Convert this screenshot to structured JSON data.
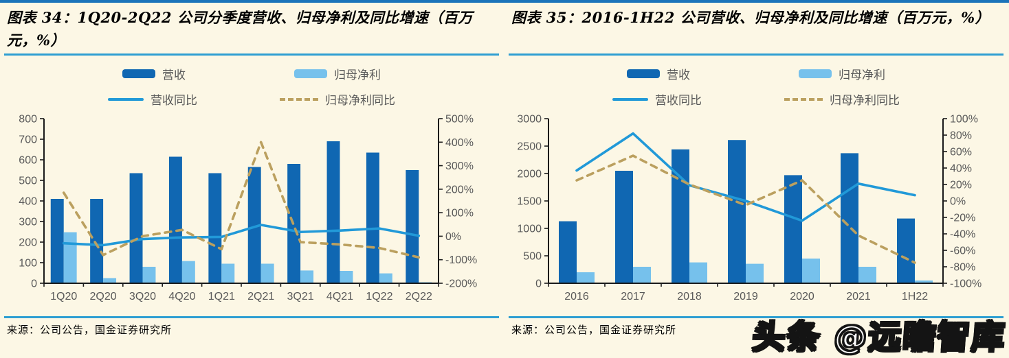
{
  "page": {
    "watermark": "头条 @远瞻智库",
    "colors": {
      "background": "#fcf7e5",
      "top_border": "#1b74ba",
      "rule": "#2e9ed2",
      "bar_revenue": "#1067b2",
      "bar_net_profit": "#76c1ec",
      "line_revenue_yoy": "#2199d8",
      "line_net_profit_yoy": "#bba05f",
      "axis_text": "#595959",
      "axis_line": "#1a1a1a"
    }
  },
  "charts": [
    {
      "title": "图表 34：1Q20-2Q22 公司分季度营收、归母净利及同比增速（百万元，%）",
      "source": "来源：公司公告，国金证券研究所"
    },
    {
      "title": "图表 35：2016-1H22 公司营收、归母净利及同比增速（百万元，%）",
      "source": "来源：公司公告，国金证券研究所"
    }
  ],
  "chart_data": [
    {
      "type": "bar",
      "subtype": "clustered-bar-with-lines",
      "title": "1Q20-2Q22 公司分季度营收、归母净利及同比增速（百万元，%）",
      "categories": [
        "1Q20",
        "2Q20",
        "3Q20",
        "4Q20",
        "1Q21",
        "2Q21",
        "3Q21",
        "4Q21",
        "1Q22",
        "2Q22"
      ],
      "bar_series": [
        {
          "name": "营收",
          "color_key": "bar_revenue",
          "axis": "left",
          "values": [
            410,
            410,
            535,
            615,
            535,
            565,
            580,
            690,
            635,
            550
          ]
        },
        {
          "name": "归母净利",
          "color_key": "bar_net_profit",
          "axis": "left",
          "values": [
            248,
            25,
            80,
            108,
            95,
            95,
            62,
            60,
            48,
            5
          ]
        }
      ],
      "line_series": [
        {
          "name": "营收同比",
          "dash": false,
          "color_key": "line_revenue_yoy",
          "axis": "right",
          "values": [
            -30,
            -38,
            -12,
            -5,
            -3,
            48,
            18,
            24,
            33,
            2
          ]
        },
        {
          "name": "归母净利同比",
          "dash": true,
          "color_key": "line_net_profit_yoy",
          "axis": "right",
          "values": [
            185,
            -80,
            0,
            27,
            -55,
            400,
            -25,
            -35,
            -50,
            -90
          ]
        }
      ],
      "left_axis": {
        "min": 0,
        "max": 800,
        "step": 100,
        "suffix": ""
      },
      "right_axis": {
        "min": -200,
        "max": 500,
        "step": 100,
        "suffix": "%"
      },
      "grid": false,
      "legend_position": "top"
    },
    {
      "type": "bar",
      "subtype": "clustered-bar-with-lines",
      "title": "2016-1H22 公司营收、归母净利及同比增速（百万元，%）",
      "categories": [
        "2016",
        "2017",
        "2018",
        "2019",
        "2020",
        "2021",
        "1H22"
      ],
      "bar_series": [
        {
          "name": "营收",
          "color_key": "bar_revenue",
          "axis": "left",
          "values": [
            1130,
            2050,
            2440,
            2610,
            1970,
            2370,
            1180
          ]
        },
        {
          "name": "归母净利",
          "color_key": "bar_net_profit",
          "axis": "left",
          "values": [
            200,
            300,
            380,
            355,
            450,
            300,
            50
          ]
        }
      ],
      "line_series": [
        {
          "name": "营收同比",
          "dash": false,
          "color_key": "line_revenue_yoy",
          "axis": "right",
          "values": [
            37,
            82,
            19,
            0,
            -24,
            21,
            7
          ]
        },
        {
          "name": "归母净利同比",
          "dash": true,
          "color_key": "line_net_profit_yoy",
          "axis": "right",
          "values": [
            25,
            55,
            20,
            -5,
            25,
            -42,
            -75
          ]
        }
      ],
      "left_axis": {
        "min": 0,
        "max": 3000,
        "step": 500,
        "suffix": ""
      },
      "right_axis": {
        "min": -100,
        "max": 100,
        "step": 20,
        "suffix": "%"
      },
      "grid": false,
      "legend_position": "top"
    }
  ]
}
